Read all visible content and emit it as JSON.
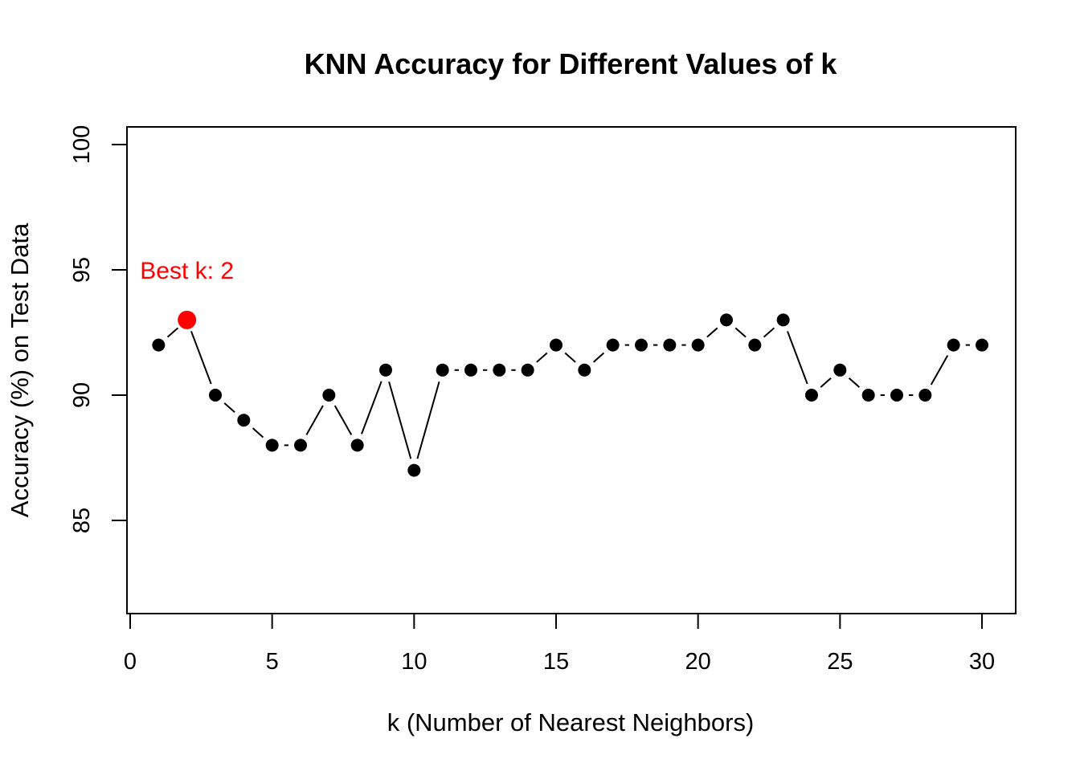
{
  "chart_data": {
    "type": "line",
    "title": "KNN Accuracy for Different Values of k",
    "xlabel": "k (Number of Nearest Neighbors)",
    "ylabel": "Accuracy (%) on Test Data",
    "xlim": [
      0,
      31
    ],
    "ylim": [
      81.5,
      100.7
    ],
    "x_ticks": [
      0,
      5,
      10,
      15,
      20,
      25,
      30
    ],
    "y_ticks": [
      85,
      90,
      95,
      100
    ],
    "grid": false,
    "line_style": "points-connected-by-gapped-lines",
    "series": [
      {
        "x": [
          1,
          2,
          3,
          4,
          5,
          6,
          7,
          8,
          9,
          10,
          11,
          12,
          13,
          14,
          15,
          16,
          17,
          18,
          19,
          20,
          21,
          22,
          23,
          24,
          25,
          26,
          27,
          28,
          29,
          30
        ],
        "values": [
          92,
          93,
          90,
          89,
          88,
          88,
          90,
          88,
          91,
          87,
          91,
          91,
          91,
          91,
          92,
          91,
          92,
          92,
          92,
          92,
          93,
          92,
          93,
          90,
          91,
          90,
          90,
          90,
          92,
          92
        ],
        "color": "#000000"
      }
    ],
    "highlight": {
      "x": 2,
      "y": 93,
      "color": "#ff0000"
    },
    "annotations": [
      {
        "text": "Best k: 2",
        "x": 2,
        "y": 95,
        "color": "#ff0000"
      }
    ]
  }
}
